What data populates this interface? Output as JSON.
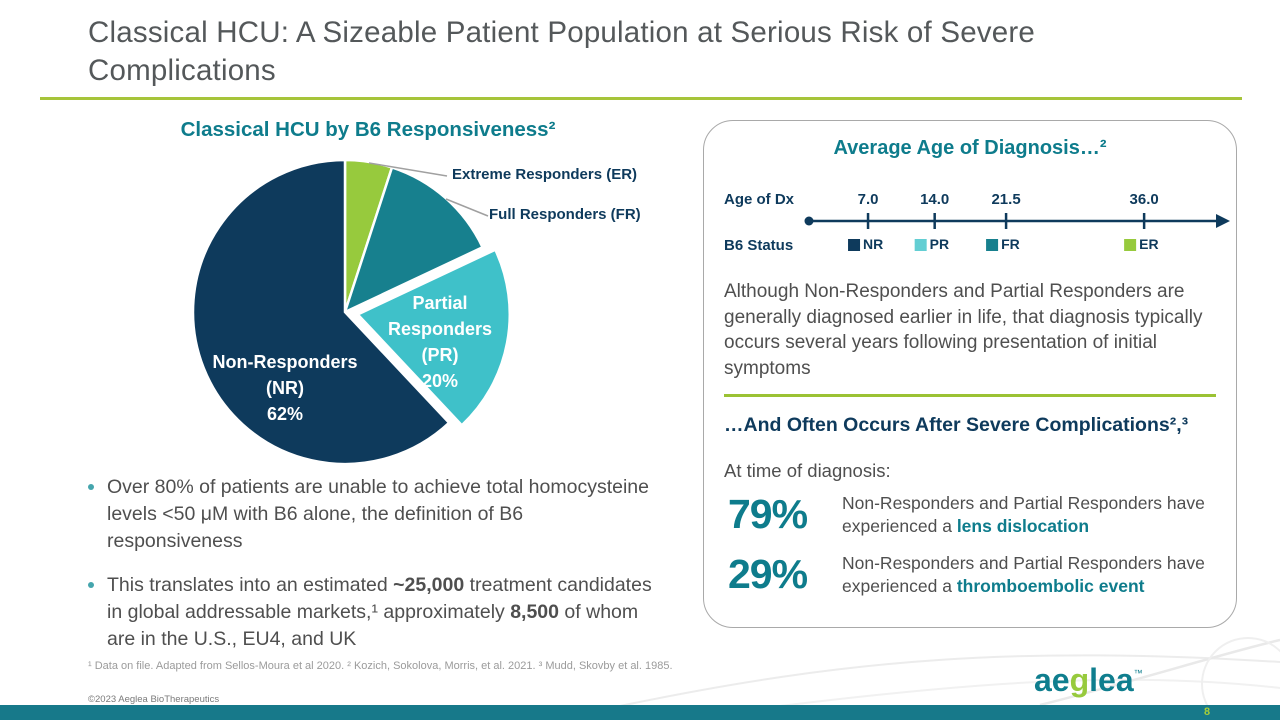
{
  "slide": {
    "title_lines": [
      "Classical HCU: A Sizeable Patient Population at Serious Risk of Severe",
      "Complications"
    ],
    "page_number": "8",
    "footnote": "¹ Data on file. Adapted from Sellos-Moura et al 2020. ² Kozich, Sokolova, Morris, et al. 2021. ³ Mudd, Skovby et al. 1985.",
    "copyright": "©2023 Aeglea BioTherapeutics",
    "logo": {
      "part1": "ae",
      "part2": "g",
      "part3": "lea",
      "tm": "™"
    }
  },
  "colors": {
    "navy": "#0e3a5c",
    "teal": "#0e7c8c",
    "cyan": "#3fc1c9",
    "green": "#97ca3d",
    "lime_rule": "#a6c43a",
    "body_gray": "#4f4f4f",
    "footer_bar": "#17798a"
  },
  "left": {
    "heading": "Classical HCU by B6 Responsiveness²",
    "bullets": [
      {
        "parts": [
          {
            "t": "Over 80% of patients are unable to achieve total homocysteine levels <50 μM with B6 alone, the definition of B6 responsiveness"
          }
        ]
      },
      {
        "parts": [
          {
            "t": "This translates into an estimated "
          },
          {
            "t": "~25,000",
            "cls": "b"
          },
          {
            "t": " treatment candidates in global addressable markets,¹ approximately "
          },
          {
            "t": "8,500",
            "cls": "b"
          },
          {
            "t": " of whom are in the U.S., EU4, and UK"
          }
        ]
      }
    ]
  },
  "right": {
    "heading_top": "Average Age of Diagnosis…²",
    "paragraph": "Although Non-Responders and Partial Responders are generally diagnosed earlier in life, that diagnosis typically occurs several years following presentation of initial symptoms",
    "heading_bottom": "…And Often Occurs After Severe Complications²,³",
    "at_time_label": "At time of diagnosis:",
    "stats": [
      {
        "pct": "79%",
        "parts": [
          {
            "t": "Non-Responders and Partial Responders have experienced a "
          },
          {
            "t": "lens dislocation",
            "cls": "hl"
          }
        ]
      },
      {
        "pct": "29%",
        "parts": [
          {
            "t": "Non-Responders and Partial Responders have experienced a "
          },
          {
            "t": "thromboembolic event",
            "cls": "hl"
          }
        ]
      }
    ]
  },
  "chart_data": [
    {
      "type": "pie",
      "title": "Classical HCU by B6 Responsiveness",
      "segments": [
        {
          "label": "Extreme Responders (ER)",
          "value": 5,
          "color": "#97ca3d"
        },
        {
          "label": "Full Responders (FR)",
          "value": 13,
          "color": "#17808e"
        },
        {
          "label": "Partial Responders (PR)",
          "value": 20,
          "color": "#3fc1c9",
          "exploded": true,
          "inner_lines": [
            "Partial",
            "Responders",
            "(PR)",
            "20%"
          ]
        },
        {
          "label": "Non-Responders (NR)",
          "value": 62,
          "color": "#0e3a5c",
          "inner_lines": [
            "Non-Responders",
            "(NR)",
            "62%"
          ]
        }
      ]
    },
    {
      "type": "timeline",
      "title": "Average Age of Diagnosis",
      "x_label": "Age of Dx",
      "legend_label": "B6 Status",
      "x_range": [
        0,
        40
      ],
      "points": [
        {
          "group": "NR",
          "age": 7.0,
          "label": "7.0",
          "color": "#0e3a5c"
        },
        {
          "group": "PR",
          "age": 14.0,
          "label": "14.0",
          "color": "#63ced3"
        },
        {
          "group": "FR",
          "age": 21.5,
          "label": "21.5",
          "color": "#17808e"
        },
        {
          "group": "ER",
          "age": 36.0,
          "label": "36.0",
          "color": "#97ca3d"
        }
      ]
    }
  ]
}
